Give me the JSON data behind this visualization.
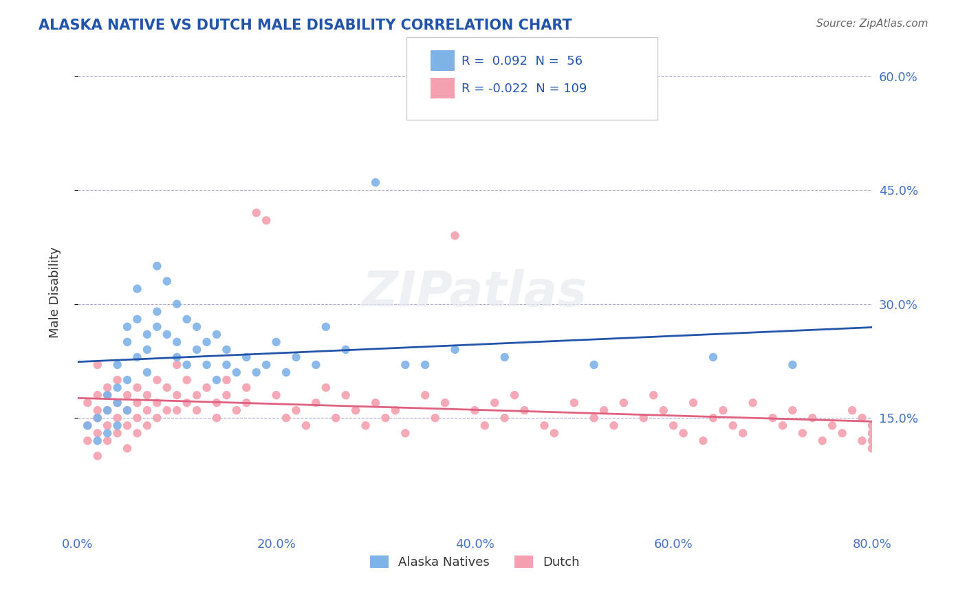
{
  "title": "ALASKA NATIVE VS DUTCH MALE DISABILITY CORRELATION CHART",
  "source": "Source: ZipAtlas.com",
  "xlabel_bottom": "",
  "ylabel": "Male Disability",
  "x_min": 0.0,
  "x_max": 0.8,
  "y_min": 0.0,
  "y_max": 0.63,
  "y_ticks": [
    0.15,
    0.3,
    0.45,
    0.6
  ],
  "y_tick_labels": [
    "15.0%",
    "30.0%",
    "45.0%",
    "60.0%"
  ],
  "x_ticks": [
    0.0,
    0.2,
    0.4,
    0.6,
    0.8
  ],
  "x_tick_labels": [
    "0.0%",
    "20.0%",
    "40.0%",
    "60.0%",
    "80.0%"
  ],
  "alaska_color": "#7EB3E8",
  "dutch_color": "#F4A0B0",
  "alaska_line_color": "#2255AA",
  "dutch_line_color": "#E06080",
  "alaska_R": 0.092,
  "alaska_N": 56,
  "dutch_R": -0.022,
  "dutch_N": 109,
  "legend_label_alaska": "Alaska Natives",
  "legend_label_dutch": "Dutch",
  "watermark": "ZIPatlas",
  "background_color": "#ffffff",
  "alaska_scatter_x": [
    0.01,
    0.02,
    0.02,
    0.03,
    0.03,
    0.03,
    0.04,
    0.04,
    0.04,
    0.04,
    0.05,
    0.05,
    0.05,
    0.05,
    0.06,
    0.06,
    0.06,
    0.07,
    0.07,
    0.07,
    0.08,
    0.08,
    0.08,
    0.09,
    0.09,
    0.1,
    0.1,
    0.1,
    0.11,
    0.11,
    0.12,
    0.12,
    0.13,
    0.13,
    0.14,
    0.14,
    0.15,
    0.15,
    0.16,
    0.17,
    0.18,
    0.19,
    0.2,
    0.21,
    0.22,
    0.24,
    0.25,
    0.27,
    0.3,
    0.33,
    0.35,
    0.38,
    0.43,
    0.52,
    0.64,
    0.72
  ],
  "alaska_scatter_y": [
    0.14,
    0.15,
    0.12,
    0.16,
    0.13,
    0.18,
    0.19,
    0.14,
    0.17,
    0.22,
    0.16,
    0.25,
    0.27,
    0.2,
    0.23,
    0.28,
    0.32,
    0.21,
    0.26,
    0.24,
    0.35,
    0.29,
    0.27,
    0.26,
    0.33,
    0.3,
    0.25,
    0.23,
    0.28,
    0.22,
    0.27,
    0.24,
    0.25,
    0.22,
    0.26,
    0.2,
    0.24,
    0.22,
    0.21,
    0.23,
    0.21,
    0.22,
    0.25,
    0.21,
    0.23,
    0.22,
    0.27,
    0.24,
    0.46,
    0.22,
    0.22,
    0.24,
    0.23,
    0.22,
    0.23,
    0.22
  ],
  "dutch_scatter_x": [
    0.01,
    0.01,
    0.01,
    0.02,
    0.02,
    0.02,
    0.02,
    0.02,
    0.02,
    0.03,
    0.03,
    0.03,
    0.03,
    0.03,
    0.04,
    0.04,
    0.04,
    0.04,
    0.05,
    0.05,
    0.05,
    0.05,
    0.06,
    0.06,
    0.06,
    0.06,
    0.07,
    0.07,
    0.07,
    0.08,
    0.08,
    0.08,
    0.09,
    0.09,
    0.1,
    0.1,
    0.1,
    0.11,
    0.11,
    0.12,
    0.12,
    0.13,
    0.14,
    0.14,
    0.15,
    0.15,
    0.16,
    0.17,
    0.17,
    0.18,
    0.19,
    0.2,
    0.21,
    0.22,
    0.23,
    0.24,
    0.25,
    0.26,
    0.27,
    0.28,
    0.29,
    0.3,
    0.31,
    0.32,
    0.33,
    0.35,
    0.36,
    0.37,
    0.38,
    0.4,
    0.41,
    0.42,
    0.43,
    0.44,
    0.45,
    0.47,
    0.48,
    0.5,
    0.52,
    0.53,
    0.54,
    0.55,
    0.57,
    0.58,
    0.59,
    0.6,
    0.61,
    0.62,
    0.63,
    0.64,
    0.65,
    0.66,
    0.67,
    0.68,
    0.7,
    0.71,
    0.72,
    0.73,
    0.74,
    0.75,
    0.76,
    0.77,
    0.78,
    0.79,
    0.79,
    0.8,
    0.8,
    0.8,
    0.8
  ],
  "dutch_scatter_y": [
    0.17,
    0.14,
    0.12,
    0.18,
    0.16,
    0.15,
    0.13,
    0.1,
    0.22,
    0.19,
    0.16,
    0.14,
    0.18,
    0.12,
    0.2,
    0.17,
    0.15,
    0.13,
    0.16,
    0.18,
    0.14,
    0.11,
    0.17,
    0.19,
    0.15,
    0.13,
    0.18,
    0.16,
    0.14,
    0.2,
    0.17,
    0.15,
    0.19,
    0.16,
    0.22,
    0.18,
    0.16,
    0.2,
    0.17,
    0.18,
    0.16,
    0.19,
    0.17,
    0.15,
    0.2,
    0.18,
    0.16,
    0.19,
    0.17,
    0.42,
    0.41,
    0.18,
    0.15,
    0.16,
    0.14,
    0.17,
    0.19,
    0.15,
    0.18,
    0.16,
    0.14,
    0.17,
    0.15,
    0.16,
    0.13,
    0.18,
    0.15,
    0.17,
    0.39,
    0.16,
    0.14,
    0.17,
    0.15,
    0.18,
    0.16,
    0.14,
    0.13,
    0.17,
    0.15,
    0.16,
    0.14,
    0.17,
    0.15,
    0.18,
    0.16,
    0.14,
    0.13,
    0.17,
    0.12,
    0.15,
    0.16,
    0.14,
    0.13,
    0.17,
    0.15,
    0.14,
    0.16,
    0.13,
    0.15,
    0.12,
    0.14,
    0.13,
    0.16,
    0.12,
    0.15,
    0.14,
    0.13,
    0.11,
    0.12
  ]
}
